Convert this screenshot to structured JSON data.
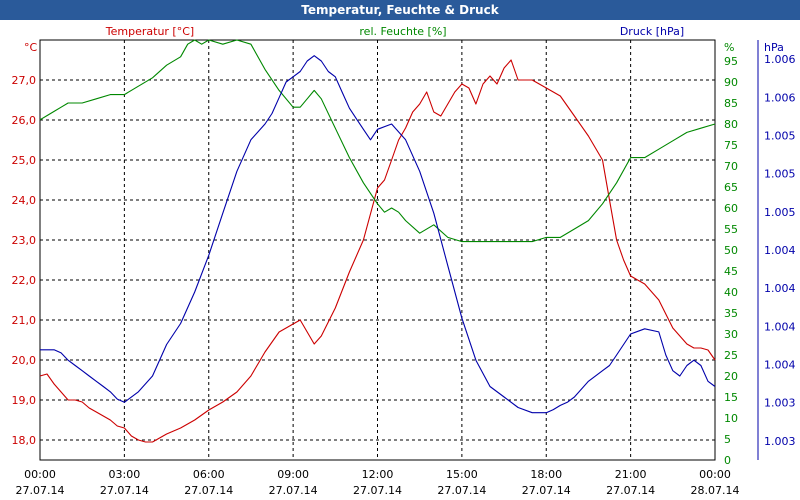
{
  "chart_data": {
    "type": "line",
    "title": "Temperatur, Feuchte & Druck",
    "colors": {
      "temperature": "#cc0000",
      "humidity": "#008800",
      "pressure": "#0000aa",
      "title_bg": "#2a5a9a"
    },
    "grid": true,
    "x_ticks": [
      {
        "time": "00:00",
        "date": "27.07.14"
      },
      {
        "time": "03:00",
        "date": "27.07.14"
      },
      {
        "time": "06:00",
        "date": "27.07.14"
      },
      {
        "time": "09:00",
        "date": "27.07.14"
      },
      {
        "time": "12:00",
        "date": "27.07.14"
      },
      {
        "time": "15:00",
        "date": "27.07.14"
      },
      {
        "time": "18:00",
        "date": "27.07.14"
      },
      {
        "time": "21:00",
        "date": "27.07.14"
      },
      {
        "time": "00:00",
        "date": "28.07.14"
      }
    ],
    "xlim_hours": [
      0,
      24
    ],
    "axes": {
      "temperature": {
        "label": "Temperatur [°C]",
        "unit": "°C",
        "ylim": [
          17.5,
          28.0
        ],
        "ticks": [
          "18,0",
          "19,0",
          "20,0",
          "21,0",
          "22,0",
          "23,0",
          "24,0",
          "25,0",
          "26,0",
          "27,0"
        ]
      },
      "humidity": {
        "label": "rel. Feuchte [%]",
        "unit": "%",
        "ylim": [
          0,
          100
        ],
        "ticks": [
          "0",
          "5",
          "10",
          "15",
          "20",
          "25",
          "30",
          "35",
          "40",
          "45",
          "50",
          "55",
          "60",
          "65",
          "70",
          "75",
          "80",
          "85",
          "90",
          "95"
        ]
      },
      "pressure": {
        "label": "Druck [hPa]",
        "unit": "hPa",
        "ylim": [
          1002.5,
          1006.5
        ],
        "ticks": [
          "1.003",
          "1.003",
          "1.004",
          "1.004",
          "1.004",
          "1.004",
          "1.005",
          "1.005",
          "1.005",
          "1.006",
          "1.006"
        ]
      }
    },
    "series": [
      {
        "name": "Temperatur [°C]",
        "axis": "temperature",
        "x": [
          0,
          0.25,
          0.5,
          0.75,
          1,
          1.25,
          1.5,
          1.75,
          2,
          2.25,
          2.5,
          2.75,
          3,
          3.25,
          3.5,
          3.75,
          4,
          4.5,
          5,
          5.5,
          6,
          6.5,
          7,
          7.5,
          8,
          8.5,
          9,
          9.25,
          9.5,
          9.75,
          10,
          10.5,
          11,
          11.5,
          12,
          12.25,
          12.5,
          12.75,
          13,
          13.25,
          13.5,
          13.75,
          14,
          14.25,
          14.5,
          14.75,
          15,
          15.25,
          15.5,
          15.75,
          16,
          16.25,
          16.5,
          16.75,
          17,
          17.5,
          18,
          18.5,
          19,
          19.5,
          20,
          20.25,
          20.5,
          20.75,
          21,
          21.5,
          22,
          22.5,
          23,
          23.25,
          23.5,
          23.75,
          24
        ],
        "values": [
          19.6,
          19.65,
          19.4,
          19.2,
          19.0,
          19.0,
          18.95,
          18.8,
          18.7,
          18.6,
          18.5,
          18.35,
          18.3,
          18.1,
          18.0,
          17.95,
          17.95,
          18.15,
          18.3,
          18.5,
          18.75,
          18.95,
          19.2,
          19.6,
          20.2,
          20.7,
          20.9,
          21.0,
          20.7,
          20.4,
          20.6,
          21.3,
          22.2,
          23.0,
          24.3,
          24.5,
          25.0,
          25.5,
          25.8,
          26.2,
          26.4,
          26.7,
          26.2,
          26.1,
          26.4,
          26.7,
          26.9,
          26.8,
          26.4,
          26.9,
          27.1,
          26.9,
          27.3,
          27.5,
          27.0,
          27.0,
          26.8,
          26.6,
          26.1,
          25.6,
          25.0,
          24.0,
          23.0,
          22.5,
          22.1,
          21.9,
          21.5,
          20.8,
          20.4,
          20.3,
          20.3,
          20.25,
          20.0
        ]
      },
      {
        "name": "rel. Feuchte [%]",
        "axis": "humidity",
        "x": [
          0,
          0.25,
          0.5,
          0.75,
          1,
          1.5,
          2,
          2.5,
          3,
          3.5,
          4,
          4.5,
          5,
          5.25,
          5.5,
          5.75,
          6,
          6.5,
          7,
          7.5,
          8,
          8.5,
          9,
          9.25,
          9.5,
          9.75,
          10,
          10.5,
          11,
          11.5,
          12,
          12.25,
          12.5,
          12.75,
          13,
          13.5,
          14,
          14.5,
          15,
          15.5,
          16,
          16.5,
          17,
          17.5,
          18,
          18.5,
          19,
          19.5,
          20,
          20.5,
          21,
          21.5,
          22,
          22.5,
          23,
          23.5,
          24
        ],
        "values": [
          81,
          82,
          83,
          84,
          85,
          85,
          86,
          87,
          87,
          89,
          91,
          94,
          96,
          99,
          100,
          99,
          100,
          99,
          100,
          99,
          93,
          88,
          84,
          84,
          86,
          88,
          86,
          79,
          72,
          66,
          61,
          59,
          60,
          59,
          57,
          54,
          56,
          53,
          52,
          52,
          52,
          52,
          52,
          52,
          53,
          53,
          55,
          57,
          61,
          66,
          72,
          72,
          74,
          76,
          78,
          79,
          80
        ]
      },
      {
        "name": "Druck [hPa]",
        "axis": "pressure",
        "x": [
          0,
          0.25,
          0.5,
          0.75,
          1,
          1.25,
          1.5,
          1.75,
          2,
          2.25,
          2.5,
          2.75,
          3,
          3.5,
          4,
          4.5,
          5,
          5.5,
          6,
          6.5,
          7,
          7.5,
          8,
          8.25,
          8.5,
          8.75,
          9,
          9.25,
          9.5,
          9.75,
          10,
          10.25,
          10.5,
          10.75,
          11,
          11.25,
          11.5,
          11.75,
          12,
          12.5,
          13,
          13.5,
          14,
          14.5,
          15,
          15.5,
          16,
          16.5,
          17,
          17.5,
          18,
          18.25,
          18.5,
          18.75,
          19,
          19.5,
          20,
          20.25,
          20.5,
          20.75,
          21,
          21.5,
          22,
          22.25,
          22.5,
          22.75,
          23,
          23.25,
          23.5,
          23.75,
          24
        ],
        "values": [
          1003.55,
          1003.55,
          1003.55,
          1003.52,
          1003.45,
          1003.4,
          1003.35,
          1003.3,
          1003.25,
          1003.2,
          1003.15,
          1003.08,
          1003.05,
          1003.15,
          1003.3,
          1003.6,
          1003.8,
          1004.1,
          1004.45,
          1004.85,
          1005.25,
          1005.55,
          1005.7,
          1005.8,
          1005.95,
          1006.1,
          1006.15,
          1006.2,
          1006.3,
          1006.35,
          1006.3,
          1006.2,
          1006.15,
          1006.0,
          1005.85,
          1005.75,
          1005.65,
          1005.55,
          1005.65,
          1005.7,
          1005.55,
          1005.25,
          1004.85,
          1004.35,
          1003.85,
          1003.45,
          1003.2,
          1003.1,
          1003.0,
          1002.95,
          1002.95,
          1002.98,
          1003.02,
          1003.05,
          1003.1,
          1003.25,
          1003.35,
          1003.4,
          1003.5,
          1003.6,
          1003.7,
          1003.75,
          1003.72,
          1003.5,
          1003.35,
          1003.3,
          1003.4,
          1003.45,
          1003.4,
          1003.25,
          1003.2
        ]
      }
    ]
  }
}
